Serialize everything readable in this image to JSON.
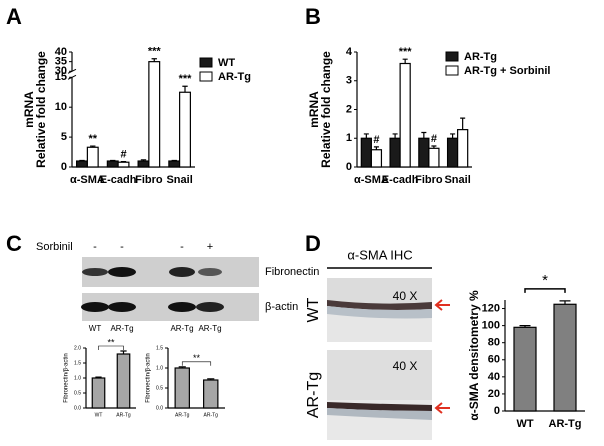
{
  "figure": {
    "panels": [
      "A",
      "B",
      "C",
      "D"
    ],
    "blot": {
      "treatment": "Sorbinil",
      "signs": [
        "-",
        "-",
        "-",
        "+"
      ],
      "bands": [
        "Fibronectin",
        "β-actin"
      ],
      "lanes": [
        "WT",
        "AR-Tg",
        "AR-Tg",
        "AR-Tg"
      ]
    },
    "ihc": {
      "title": "α-SMA IHC",
      "rows": [
        "WT",
        "AR-Tg"
      ],
      "magnification": [
        "40 X",
        "40 X"
      ]
    }
  },
  "chart_data": [
    {
      "type": "bar",
      "ylabel": [
        "mRNA",
        "Relative fold change"
      ],
      "categories": [
        "α-SMA",
        "E-cadh",
        "Fibro",
        "Snail"
      ],
      "series": [
        {
          "name": "WT",
          "color": "#1a1a1a",
          "values": [
            1,
            1,
            1,
            1
          ],
          "errors": [
            0.1,
            0.1,
            0.2,
            0.1
          ]
        },
        {
          "name": "AR-Tg",
          "color": "#ffffff",
          "values": [
            3.3,
            0.8,
            35,
            12.5
          ],
          "errors": [
            0.2,
            0.1,
            1.5,
            1
          ]
        }
      ],
      "annotations": [
        "**",
        "#",
        "***",
        "***"
      ],
      "ylim": [
        0,
        40
      ],
      "ybreak": [
        15,
        30
      ],
      "yticks": [
        0,
        5,
        10,
        15,
        30,
        35,
        40
      ],
      "legend": "upper right"
    },
    {
      "type": "bar",
      "ylabel": [
        "mRNA",
        "Relative fold change"
      ],
      "categories": [
        "α-SMA",
        "E-cadh",
        "Fibro",
        "Snail"
      ],
      "series": [
        {
          "name": "AR-Tg",
          "color": "#1a1a1a",
          "values": [
            1,
            1,
            1,
            1
          ],
          "errors": [
            0.15,
            0.15,
            0.2,
            0.15
          ]
        },
        {
          "name": "AR-Tg + Sorbinil",
          "color": "#ffffff",
          "values": [
            0.6,
            3.6,
            0.65,
            1.3
          ],
          "errors": [
            0.1,
            0.15,
            0.08,
            0.4
          ]
        }
      ],
      "annotations": [
        "#",
        "***",
        "#",
        null
      ],
      "ylim": [
        0,
        4
      ],
      "yticks": [
        0,
        1,
        2,
        3,
        4
      ],
      "legend": "upper right"
    },
    {
      "type": "bar",
      "ylabel": "Fibronectin/β-actin",
      "categories": [
        "WT",
        "AR-Tg"
      ],
      "values": [
        1,
        1.8
      ],
      "errors": [
        0.03,
        0.1
      ],
      "color": "#a6a6a6",
      "significance": "**",
      "ylim": [
        0,
        2
      ],
      "yticks": [
        {
          "value": 0,
          "label": "0.0"
        },
        0.5,
        {
          "value": 1,
          "label": "1.0"
        },
        1.5,
        {
          "value": 2,
          "label": "2.0"
        }
      ]
    },
    {
      "type": "bar",
      "ylabel": "Fibronectin/β-actin",
      "categories": [
        "AR-Tg",
        "AR-Tg"
      ],
      "values": [
        1,
        0.7
      ],
      "errors": [
        0.03,
        0.03
      ],
      "color": "#a6a6a6",
      "significance": "**",
      "ylim": [
        0,
        1.5
      ],
      "yticks": [
        {
          "value": 0,
          "label": "0.0"
        },
        0.5,
        {
          "value": 1,
          "label": "1.0"
        },
        1.5
      ]
    },
    {
      "type": "bar",
      "ylabel": "α-SMA densitometry %",
      "categories": [
        "WT",
        "AR-Tg"
      ],
      "values": [
        98,
        125
      ],
      "errors": [
        2,
        4
      ],
      "color": "#808080",
      "significance": "*",
      "ylim": [
        0,
        130
      ],
      "yticks": [
        0,
        20,
        40,
        60,
        80,
        100,
        120
      ]
    }
  ]
}
